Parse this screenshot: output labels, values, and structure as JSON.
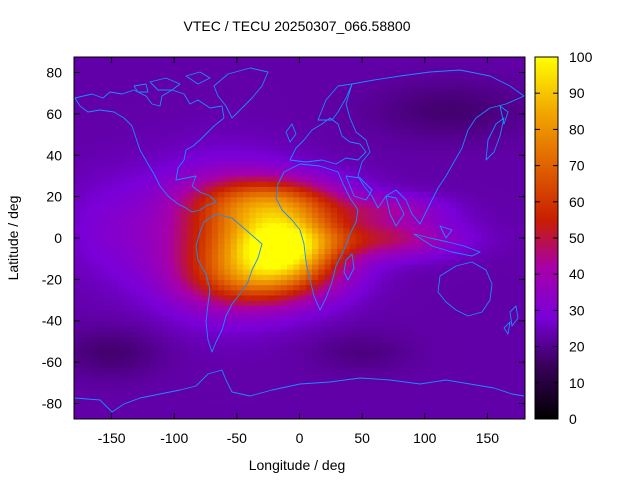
{
  "chart_data": {
    "type": "heatmap",
    "title": "VTEC / TECU 20250307_066.58800",
    "xlabel": "Longitude / deg",
    "ylabel": "Latitude / deg",
    "xlim": [
      -180,
      180
    ],
    "ylim": [
      -87.5,
      87.5
    ],
    "x_ticks": [
      -150,
      -100,
      -50,
      0,
      50,
      100,
      150
    ],
    "y_ticks": [
      80,
      60,
      40,
      20,
      0,
      -20,
      -40,
      -60,
      -80
    ],
    "colorbar": {
      "min": 0,
      "max": 100,
      "ticks": [
        100,
        90,
        80,
        70,
        60,
        50,
        40,
        30,
        20,
        10,
        0
      ],
      "palette": "gnuplot-pm3d-black-purple-red-orange-yellow"
    },
    "grid_resolution": {
      "dlon": 5,
      "dlat": 2.5
    },
    "features": [
      {
        "name": "equatorial-anomaly-main-peak",
        "lon": -10,
        "lat": -3,
        "vtec": 98
      },
      {
        "name": "northern-crest",
        "lon": -20,
        "lat": 18,
        "vtec": 85
      },
      {
        "name": "southern-crest",
        "lon": -30,
        "lat": -20,
        "vtec": 75
      },
      {
        "name": "eastern-equatorial-tongue",
        "lon": 70,
        "lat": 0,
        "vtec": 48
      },
      {
        "name": "background-minimum",
        "lon": 120,
        "lat": 60,
        "vtec": 15
      }
    ]
  }
}
